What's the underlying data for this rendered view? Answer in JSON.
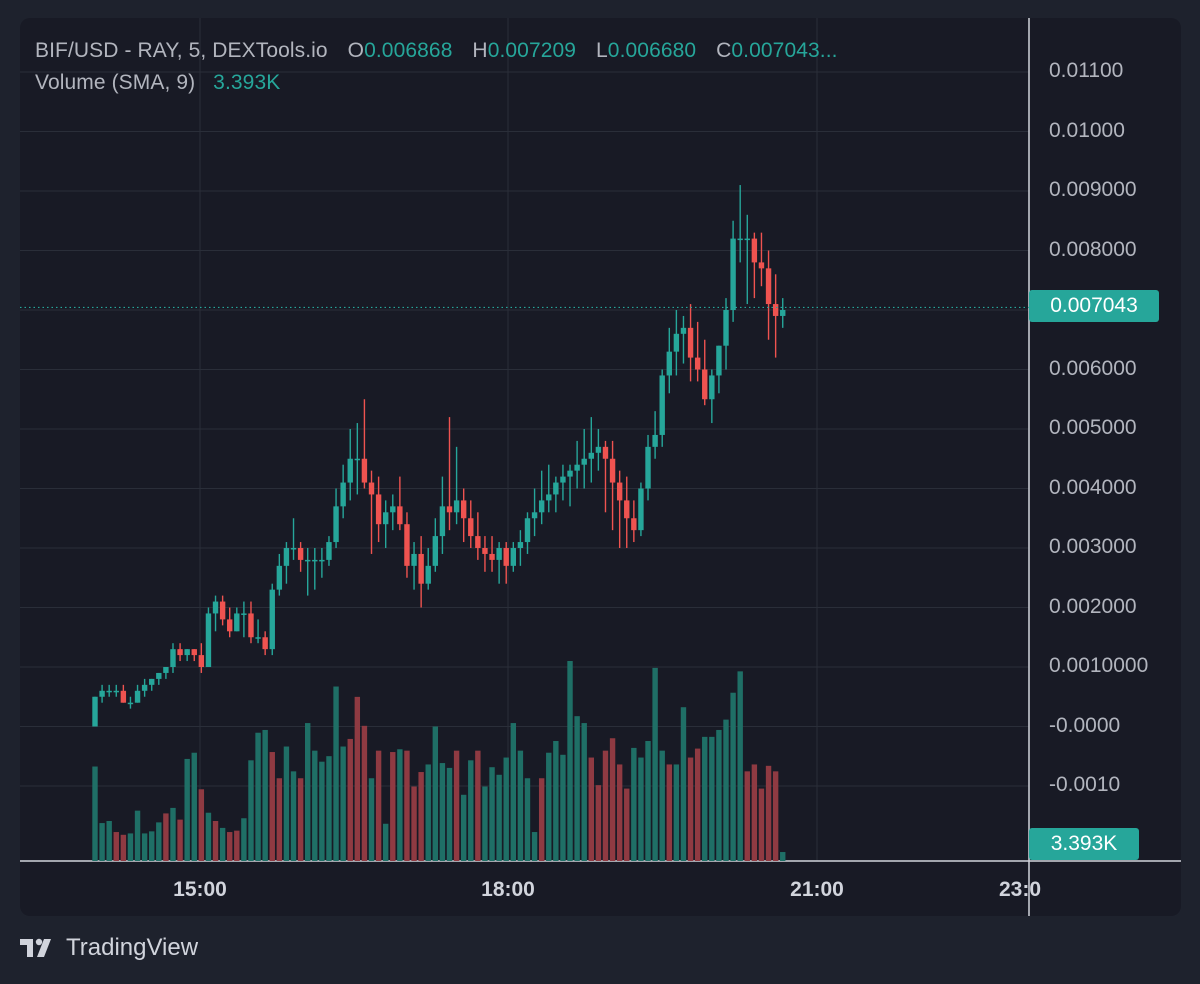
{
  "legend": {
    "symbol": "BIF/USD - RAY, 5, DEXTools.io",
    "o_label": "O",
    "o_value": "0.006868",
    "h_label": "H",
    "h_value": "0.007209",
    "l_label": "L",
    "l_value": "0.006680",
    "c_label": "C",
    "c_value": "0.007043...",
    "volume_label": "Volume (SMA, 9)",
    "volume_value": "3.393K"
  },
  "colors": {
    "up": "#26a69a",
    "down": "#ef5350",
    "volume_up": "#1f6f66",
    "volume_down": "#8f3a42",
    "background": "#181a25",
    "grid": "#2a2e39"
  },
  "brand": {
    "name": "TradingView",
    "logo_icon": "tradingview-logo-icon"
  },
  "chart_data": {
    "type": "candlestick",
    "y_axis_labels": [
      "0.01100",
      "0.01000",
      "0.009000",
      "0.008000",
      "0.007000",
      "0.006000",
      "0.005000",
      "0.004000",
      "0.003000",
      "0.002000",
      "0.0010000",
      "-0.0000",
      "-0.0010"
    ],
    "x_axis_labels": [
      "15:00",
      "18:00",
      "21:00",
      "23:0"
    ],
    "ylim": [
      -0.00125,
      0.0115
    ],
    "last_price_label": "0.007043",
    "last_price": 0.007043,
    "last_volume_label": "3.393K",
    "price_line_dotted": true,
    "grid": true,
    "candles": [
      [
        0.0,
        0.0005,
        0.0,
        0.0005
      ],
      [
        0.0005,
        0.0007,
        0.0004,
        0.0006
      ],
      [
        0.0006,
        0.0007,
        0.0005,
        0.0006
      ],
      [
        0.0006,
        0.0007,
        0.0005,
        0.0006
      ],
      [
        0.0006,
        0.0007,
        0.0004,
        0.0004
      ],
      [
        0.0004,
        0.0005,
        0.0003,
        0.0004
      ],
      [
        0.0004,
        0.0007,
        0.0004,
        0.0006
      ],
      [
        0.0006,
        0.0008,
        0.0005,
        0.0007
      ],
      [
        0.0007,
        0.0008,
        0.0006,
        0.0008
      ],
      [
        0.0008,
        0.0009,
        0.0007,
        0.0009
      ],
      [
        0.0009,
        0.001,
        0.0008,
        0.001
      ],
      [
        0.001,
        0.0014,
        0.0009,
        0.0013
      ],
      [
        0.0013,
        0.0014,
        0.0011,
        0.0012
      ],
      [
        0.0012,
        0.0013,
        0.0011,
        0.0013
      ],
      [
        0.0013,
        0.0013,
        0.0011,
        0.0012
      ],
      [
        0.0012,
        0.0014,
        0.0009,
        0.001
      ],
      [
        0.001,
        0.002,
        0.001,
        0.0019
      ],
      [
        0.0019,
        0.0022,
        0.0016,
        0.0021
      ],
      [
        0.0021,
        0.0022,
        0.0017,
        0.0018
      ],
      [
        0.0018,
        0.002,
        0.0015,
        0.0016
      ],
      [
        0.0016,
        0.002,
        0.0016,
        0.0019
      ],
      [
        0.0019,
        0.0021,
        0.0015,
        0.0019
      ],
      [
        0.0019,
        0.0021,
        0.0014,
        0.0015
      ],
      [
        0.0015,
        0.0018,
        0.0014,
        0.0015
      ],
      [
        0.0015,
        0.0016,
        0.0012,
        0.0013
      ],
      [
        0.0013,
        0.0024,
        0.0012,
        0.0023
      ],
      [
        0.0023,
        0.0029,
        0.0022,
        0.0027
      ],
      [
        0.0027,
        0.0031,
        0.0024,
        0.003
      ],
      [
        0.003,
        0.0035,
        0.0028,
        0.003
      ],
      [
        0.003,
        0.0031,
        0.0026,
        0.0028
      ],
      [
        0.0028,
        0.003,
        0.0022,
        0.0028
      ],
      [
        0.0028,
        0.003,
        0.0023,
        0.0028
      ],
      [
        0.0028,
        0.003,
        0.0025,
        0.0028
      ],
      [
        0.0028,
        0.0032,
        0.0027,
        0.0031
      ],
      [
        0.0031,
        0.004,
        0.003,
        0.0037
      ],
      [
        0.0037,
        0.0044,
        0.0035,
        0.0041
      ],
      [
        0.0041,
        0.005,
        0.0038,
        0.0045
      ],
      [
        0.0045,
        0.0051,
        0.0039,
        0.0045
      ],
      [
        0.0045,
        0.0055,
        0.004,
        0.0041
      ],
      [
        0.0041,
        0.0043,
        0.0029,
        0.0039
      ],
      [
        0.0039,
        0.0042,
        0.0031,
        0.0034
      ],
      [
        0.0034,
        0.0038,
        0.003,
        0.0036
      ],
      [
        0.0036,
        0.0039,
        0.0033,
        0.0037
      ],
      [
        0.0037,
        0.0042,
        0.0033,
        0.0034
      ],
      [
        0.0034,
        0.0036,
        0.0025,
        0.0027
      ],
      [
        0.0027,
        0.0031,
        0.0023,
        0.0029
      ],
      [
        0.0029,
        0.0032,
        0.002,
        0.0024
      ],
      [
        0.0024,
        0.003,
        0.0023,
        0.0027
      ],
      [
        0.0027,
        0.0035,
        0.0026,
        0.0032
      ],
      [
        0.0032,
        0.0042,
        0.0029,
        0.0037
      ],
      [
        0.0037,
        0.0052,
        0.0033,
        0.0036
      ],
      [
        0.0036,
        0.0047,
        0.0034,
        0.0038
      ],
      [
        0.0038,
        0.004,
        0.0031,
        0.0035
      ],
      [
        0.0035,
        0.0038,
        0.003,
        0.0032
      ],
      [
        0.0032,
        0.0036,
        0.0028,
        0.003
      ],
      [
        0.003,
        0.0032,
        0.0026,
        0.0029
      ],
      [
        0.0029,
        0.0032,
        0.0026,
        0.0028
      ],
      [
        0.0028,
        0.0031,
        0.0024,
        0.003
      ],
      [
        0.003,
        0.0031,
        0.0024,
        0.0027
      ],
      [
        0.0027,
        0.0031,
        0.0026,
        0.003
      ],
      [
        0.003,
        0.0033,
        0.0027,
        0.0031
      ],
      [
        0.0031,
        0.0036,
        0.0029,
        0.0035
      ],
      [
        0.0035,
        0.004,
        0.0032,
        0.0036
      ],
      [
        0.0036,
        0.0043,
        0.0034,
        0.0038
      ],
      [
        0.0038,
        0.0044,
        0.0036,
        0.0039
      ],
      [
        0.0039,
        0.0042,
        0.0036,
        0.0041
      ],
      [
        0.0041,
        0.0044,
        0.0038,
        0.0042
      ],
      [
        0.0042,
        0.0044,
        0.0037,
        0.0043
      ],
      [
        0.0043,
        0.0048,
        0.004,
        0.0044
      ],
      [
        0.0044,
        0.005,
        0.004,
        0.0045
      ],
      [
        0.0045,
        0.0052,
        0.0041,
        0.0046
      ],
      [
        0.0046,
        0.005,
        0.0043,
        0.0047
      ],
      [
        0.0047,
        0.0048,
        0.0036,
        0.0045
      ],
      [
        0.0045,
        0.0048,
        0.0033,
        0.0041
      ],
      [
        0.0041,
        0.0043,
        0.003,
        0.0038
      ],
      [
        0.0038,
        0.0042,
        0.003,
        0.0035
      ],
      [
        0.0035,
        0.0038,
        0.0031,
        0.0033
      ],
      [
        0.0033,
        0.0041,
        0.0032,
        0.004
      ],
      [
        0.004,
        0.0049,
        0.0038,
        0.0047
      ],
      [
        0.0047,
        0.0053,
        0.0045,
        0.0049
      ],
      [
        0.0049,
        0.006,
        0.0047,
        0.0059
      ],
      [
        0.0059,
        0.0067,
        0.0056,
        0.0063
      ],
      [
        0.0063,
        0.007,
        0.0059,
        0.0066
      ],
      [
        0.0066,
        0.0069,
        0.0061,
        0.0067
      ],
      [
        0.0067,
        0.0071,
        0.0058,
        0.0062
      ],
      [
        0.0062,
        0.0068,
        0.0058,
        0.006
      ],
      [
        0.006,
        0.0065,
        0.0054,
        0.0055
      ],
      [
        0.0055,
        0.006,
        0.0051,
        0.0059
      ],
      [
        0.0059,
        0.0064,
        0.0056,
        0.0064
      ],
      [
        0.0064,
        0.0072,
        0.006,
        0.007
      ],
      [
        0.007,
        0.0085,
        0.0068,
        0.0082
      ],
      [
        0.0082,
        0.0091,
        0.0078,
        0.0082
      ],
      [
        0.0082,
        0.0086,
        0.0071,
        0.0082
      ],
      [
        0.0082,
        0.0083,
        0.0072,
        0.0078
      ],
      [
        0.0078,
        0.0083,
        0.0074,
        0.0077
      ],
      [
        0.0077,
        0.008,
        0.0065,
        0.0071
      ],
      [
        0.0071,
        0.0076,
        0.0062,
        0.0069
      ],
      [
        0.0069,
        0.0072,
        0.0067,
        0.007
      ]
    ],
    "volume": [
      [
        1370,
        "up"
      ],
      [
        550,
        "up"
      ],
      [
        580,
        "up"
      ],
      [
        420,
        "down"
      ],
      [
        380,
        "down"
      ],
      [
        400,
        "up"
      ],
      [
        730,
        "up"
      ],
      [
        400,
        "up"
      ],
      [
        430,
        "up"
      ],
      [
        560,
        "up"
      ],
      [
        690,
        "down"
      ],
      [
        770,
        "up"
      ],
      [
        600,
        "down"
      ],
      [
        1480,
        "up"
      ],
      [
        1570,
        "up"
      ],
      [
        1040,
        "down"
      ],
      [
        700,
        "up"
      ],
      [
        580,
        "down"
      ],
      [
        480,
        "up"
      ],
      [
        420,
        "down"
      ],
      [
        440,
        "down"
      ],
      [
        620,
        "up"
      ],
      [
        1460,
        "up"
      ],
      [
        1860,
        "up"
      ],
      [
        1900,
        "up"
      ],
      [
        1580,
        "down"
      ],
      [
        1200,
        "down"
      ],
      [
        1660,
        "up"
      ],
      [
        1300,
        "up"
      ],
      [
        1200,
        "down"
      ],
      [
        2000,
        "up"
      ],
      [
        1600,
        "up"
      ],
      [
        1440,
        "up"
      ],
      [
        1520,
        "up"
      ],
      [
        2530,
        "up"
      ],
      [
        1660,
        "up"
      ],
      [
        1770,
        "down"
      ],
      [
        2380,
        "down"
      ],
      [
        1960,
        "down"
      ],
      [
        1200,
        "up"
      ],
      [
        1600,
        "down"
      ],
      [
        540,
        "up"
      ],
      [
        1580,
        "down"
      ],
      [
        1620,
        "up"
      ],
      [
        1600,
        "down"
      ],
      [
        1080,
        "down"
      ],
      [
        1290,
        "down"
      ],
      [
        1400,
        "up"
      ],
      [
        1950,
        "up"
      ],
      [
        1420,
        "up"
      ],
      [
        1350,
        "up"
      ],
      [
        1600,
        "down"
      ],
      [
        960,
        "up"
      ],
      [
        1460,
        "up"
      ],
      [
        1600,
        "down"
      ],
      [
        1080,
        "up"
      ],
      [
        1360,
        "up"
      ],
      [
        1250,
        "up"
      ],
      [
        1500,
        "up"
      ],
      [
        2000,
        "up"
      ],
      [
        1600,
        "up"
      ],
      [
        1200,
        "up"
      ],
      [
        420,
        "up"
      ],
      [
        1200,
        "down"
      ],
      [
        1570,
        "up"
      ],
      [
        1740,
        "up"
      ],
      [
        1540,
        "up"
      ],
      [
        2900,
        "up"
      ],
      [
        2100,
        "up"
      ],
      [
        2000,
        "up"
      ],
      [
        1500,
        "down"
      ],
      [
        1100,
        "down"
      ],
      [
        1600,
        "down"
      ],
      [
        1780,
        "down"
      ],
      [
        1400,
        "down"
      ],
      [
        1050,
        "down"
      ],
      [
        1640,
        "up"
      ],
      [
        1500,
        "up"
      ],
      [
        1740,
        "up"
      ],
      [
        2800,
        "up"
      ],
      [
        1600,
        "up"
      ],
      [
        1400,
        "down"
      ],
      [
        1400,
        "up"
      ],
      [
        2230,
        "up"
      ],
      [
        1500,
        "down"
      ],
      [
        1630,
        "down"
      ],
      [
        1800,
        "up"
      ],
      [
        1800,
        "up"
      ],
      [
        1900,
        "up"
      ],
      [
        2050,
        "up"
      ],
      [
        2440,
        "up"
      ],
      [
        2750,
        "up"
      ],
      [
        1300,
        "down"
      ],
      [
        1400,
        "down"
      ],
      [
        1050,
        "down"
      ],
      [
        1380,
        "down"
      ],
      [
        1300,
        "down"
      ],
      [
        130,
        "up"
      ]
    ]
  }
}
